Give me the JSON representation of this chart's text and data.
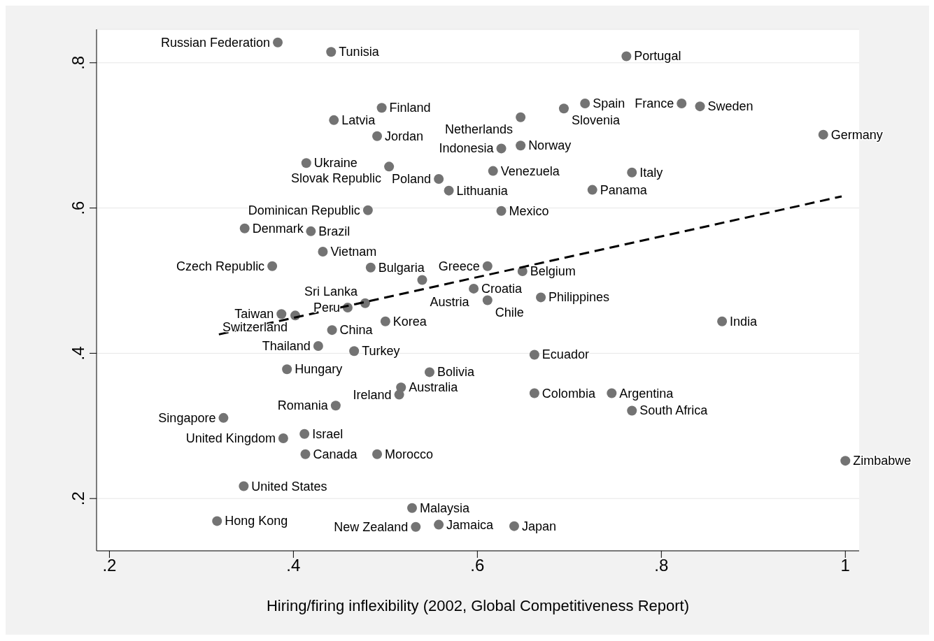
{
  "chart_data": {
    "type": "scatter",
    "xlabel": "Hiring/firing inflexibility  (2002, Global Competitiveness Report)",
    "xlim": [
      0.186,
      1.015
    ],
    "xticks": [
      {
        "value": 0.2,
        "label": ".2"
      },
      {
        "value": 0.4,
        "label": ".4"
      },
      {
        "value": 0.6,
        "label": ".6"
      },
      {
        "value": 0.8,
        "label": ".8"
      },
      {
        "value": 1,
        "label": "1"
      }
    ],
    "ylim": [
      0.128,
      0.846
    ],
    "yticks": [
      {
        "value": 0.2,
        "label": ".2"
      },
      {
        "value": 0.4,
        "label": ".4"
      },
      {
        "value": 0.6,
        "label": ".6"
      },
      {
        "value": 0.8,
        "label": ".8"
      }
    ],
    "grid": "y",
    "legend": false,
    "series": [
      {
        "color": "#737373",
        "marker": "circle",
        "x": [
          0.383,
          0.441,
          0.762,
          0.717,
          0.694,
          0.822,
          0.842,
          0.496,
          0.444,
          0.647,
          0.491,
          0.976,
          0.626,
          0.647,
          0.414,
          0.504,
          0.617,
          0.768,
          0.558,
          0.569,
          0.725,
          0.481,
          0.626,
          0.347,
          0.419,
          0.432,
          0.377,
          0.484,
          0.611,
          0.649,
          0.54,
          0.596,
          0.611,
          0.669,
          0.478,
          0.459,
          0.387,
          0.402,
          0.5,
          0.866,
          0.442,
          0.427,
          0.466,
          0.662,
          0.393,
          0.548,
          0.517,
          0.515,
          0.662,
          0.746,
          0.446,
          0.768,
          0.324,
          0.412,
          0.389,
          0.413,
          0.491,
          1.0,
          0.346,
          0.529,
          0.317,
          0.533,
          0.558,
          0.64
        ],
        "values": [
          0.828,
          0.815,
          0.809,
          0.744,
          0.737,
          0.744,
          0.74,
          0.738,
          0.721,
          0.725,
          0.699,
          0.701,
          0.682,
          0.686,
          0.662,
          0.657,
          0.651,
          0.649,
          0.64,
          0.624,
          0.625,
          0.597,
          0.596,
          0.572,
          0.568,
          0.54,
          0.52,
          0.518,
          0.52,
          0.513,
          0.501,
          0.489,
          0.473,
          0.477,
          0.469,
          0.463,
          0.454,
          0.452,
          0.444,
          0.444,
          0.432,
          0.41,
          0.403,
          0.398,
          0.378,
          0.374,
          0.353,
          0.343,
          0.345,
          0.345,
          0.328,
          0.321,
          0.311,
          0.289,
          0.283,
          0.261,
          0.261,
          0.252,
          0.217,
          0.187,
          0.169,
          0.161,
          0.164,
          0.162
        ],
        "value_labels": [
          "Russian Federation",
          "Tunisia",
          "Portugal",
          "Spain",
          "Slovenia",
          "France",
          "Sweden",
          "Finland",
          "Latvia",
          "Netherlands",
          "Jordan",
          "Germany",
          "Indonesia",
          "Norway",
          "Ukraine",
          "Slovak Republic",
          "Venezuela",
          "Italy",
          "Poland",
          "Lithuania",
          "Panama",
          "Dominican Republic",
          "Mexico",
          "Denmark",
          "Brazil",
          "Vietnam",
          "Czech Republic",
          "Bulgaria",
          "Greece",
          "Belgium",
          "Austria",
          "Croatia",
          "Chile",
          "Philippines",
          "Sri Lanka",
          "Peru",
          "Taiwan",
          "Switzerland",
          "Korea",
          "India",
          "China",
          "Thailand",
          "Turkey",
          "Ecuador",
          "Hungary",
          "Bolivia",
          "Australia",
          "Ireland",
          "Colombia",
          "Argentina",
          "Romania",
          "South Africa",
          "Singapore",
          "Israel",
          "United Kingdom",
          "Canada",
          "Morocco",
          "Zimbabwe",
          "United States",
          "Malaysia",
          "Hong Kong",
          "New Zealand",
          "Jamaica",
          "Japan"
        ]
      },
      {
        "type": "line",
        "color": "#000000",
        "marker": "none",
        "line_style": "dashed",
        "x": [
          0.319,
          0.996
        ],
        "values": [
          0.426,
          0.616
        ]
      }
    ]
  }
}
